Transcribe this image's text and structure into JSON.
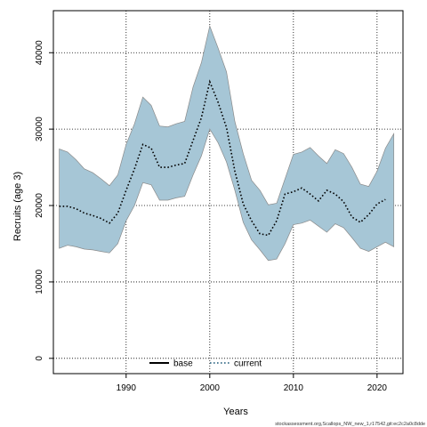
{
  "chart_data": {
    "type": "area",
    "title": "",
    "xlabel": "Years",
    "ylabel": "Recruits (age 3)",
    "xlim": [
      1981.3,
      2023.1
    ],
    "ylim": [
      -2000,
      45500
    ],
    "x_ticks": [
      1990,
      2000,
      2010,
      2020
    ],
    "y_ticks": [
      0,
      10000,
      20000,
      30000,
      40000
    ],
    "x_tick_labels": [
      "1990",
      "2000",
      "2010",
      "2020"
    ],
    "y_tick_labels": [
      "0",
      "10000",
      "20000",
      "30000",
      "40000"
    ],
    "grid": true,
    "legend_placement": "bottom",
    "legend": [
      {
        "label": "base",
        "color": "#000000",
        "style": "solid"
      },
      {
        "label": "current",
        "color": "#1f5a7a",
        "style": "dotted"
      }
    ],
    "band_color": "#a6c6d6",
    "band_edge_color": "#8a8a8a",
    "line_color": "#000000",
    "series": [
      {
        "name": "current",
        "x": [
          1982,
          1983,
          1984,
          1985,
          1986,
          1987,
          1988,
          1989,
          1990,
          1991,
          1992,
          1993,
          1994,
          1995,
          1996,
          1997,
          1998,
          1999,
          2000,
          2001,
          2002,
          2003,
          2004,
          2005,
          2006,
          2007,
          2008,
          2009,
          2010,
          2011,
          2012,
          2013,
          2014,
          2015,
          2016,
          2017,
          2018,
          2019,
          2020,
          2021,
          2022
        ],
        "y": [
          19900,
          19900,
          19600,
          19000,
          18700,
          18300,
          17700,
          19000,
          22000,
          24800,
          28000,
          27500,
          25000,
          25000,
          25300,
          25500,
          28500,
          31500,
          36200,
          33500,
          30200,
          24500,
          20200,
          18000,
          16300,
          16100,
          18000,
          21500,
          21800,
          22300,
          21500,
          20600,
          22000,
          21500,
          20500,
          18500,
          17800,
          18800,
          20200,
          20800,
          null
        ],
        "lower": [
          14400,
          14800,
          14600,
          14300,
          14200,
          14000,
          13800,
          15000,
          18000,
          20000,
          23000,
          22700,
          20700,
          20700,
          21000,
          21200,
          24000,
          26500,
          30000,
          28200,
          25700,
          22000,
          17800,
          15500,
          14200,
          12800,
          13000,
          15000,
          17500,
          17700,
          18100,
          17300,
          16500,
          17600,
          17100,
          15800,
          14400,
          14000,
          14600,
          15200,
          14600
        ],
        "upper": [
          27400,
          27000,
          26000,
          24800,
          24300,
          23500,
          22600,
          24000,
          28000,
          30700,
          34200,
          33100,
          30400,
          30300,
          30700,
          31000,
          35500,
          38700,
          43500,
          40600,
          37500,
          31000,
          26800,
          23300,
          22000,
          20100,
          20300,
          23500,
          26700,
          27000,
          27600,
          26500,
          25500,
          27300,
          26800,
          25000,
          22800,
          22500,
          24500,
          27500,
          29400
        ]
      }
    ]
  },
  "footer": "stockassessment.org,Scallops_NW_new_1,r17542,git:ec2c2a0c8dde"
}
